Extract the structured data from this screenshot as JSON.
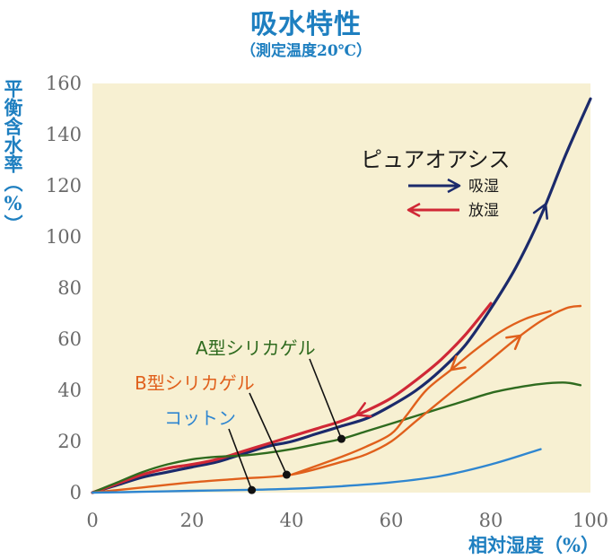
{
  "header": {
    "title": "吸水特性",
    "subtitle": "（測定温度20℃）"
  },
  "chart_data": {
    "type": "line",
    "title": "吸水特性",
    "subtitle": "（測定温度20℃）",
    "xlabel": "相対湿度（%）",
    "ylabel": "平衡含水率（%）",
    "xlim": [
      0,
      100
    ],
    "ylim": [
      0,
      160
    ],
    "xticks": [
      "0",
      "20",
      "40",
      "60",
      "80",
      "100"
    ],
    "yticks": [
      "0",
      "20",
      "40",
      "60",
      "80",
      "100",
      "120",
      "140",
      "160"
    ],
    "grid": false,
    "legend": {
      "title": "ピュアオアシス",
      "position": "top-right",
      "items": [
        {
          "label": "吸湿",
          "color": "#1b2a6b"
        },
        {
          "label": "放湿",
          "color": "#d02836"
        }
      ]
    },
    "series": [
      {
        "name": "ピュアオアシス 吸湿",
        "color": "#1b2a6b",
        "x": [
          0,
          5,
          10,
          15,
          20,
          25,
          30,
          35,
          40,
          45,
          50,
          55,
          60,
          65,
          70,
          75,
          80,
          85,
          90,
          95,
          100
        ],
        "y": [
          0,
          3,
          6,
          8,
          10,
          12,
          15,
          18,
          20,
          23,
          26,
          29,
          34,
          40,
          48,
          58,
          72,
          88,
          108,
          132,
          154
        ]
      },
      {
        "name": "ピュアオアシス 放湿",
        "color": "#d02836",
        "x": [
          0,
          5,
          10,
          15,
          20,
          25,
          30,
          35,
          40,
          45,
          50,
          55,
          60,
          65,
          70,
          75,
          80
        ],
        "y": [
          0,
          3.5,
          7,
          9.5,
          11,
          13,
          16,
          19,
          22,
          25,
          28,
          32,
          37,
          44,
          52,
          62,
          74
        ]
      },
      {
        "name": "A型シリカゲル",
        "color": "#2f6b1f",
        "x": [
          0,
          5,
          10,
          15,
          20,
          25,
          30,
          35,
          40,
          45,
          50,
          55,
          60,
          65,
          70,
          75,
          80,
          85,
          90,
          95,
          98
        ],
        "y": [
          0,
          4,
          8,
          11,
          13,
          14,
          14.5,
          15.5,
          17,
          19,
          21,
          24,
          27,
          30,
          33,
          36,
          39,
          41,
          42.5,
          43,
          42
        ]
      },
      {
        "name": "B型シリカゲル 吸湿",
        "color": "#e0601c",
        "x": [
          0,
          10,
          20,
          30,
          40,
          50,
          55,
          60,
          65,
          70,
          75,
          80,
          85,
          90,
          95,
          98
        ],
        "y": [
          0,
          2,
          4,
          5.5,
          7,
          12,
          15,
          20,
          28,
          36,
          44,
          52,
          60,
          67,
          72,
          73
        ]
      },
      {
        "name": "B型シリカゲル 放湿",
        "color": "#e0601c",
        "x": [
          40,
          50,
          55,
          60,
          63,
          67,
          72,
          77,
          82,
          87,
          92
        ],
        "y": [
          7,
          14,
          18,
          23,
          30,
          40,
          48,
          56,
          63,
          68,
          71
        ]
      },
      {
        "name": "コットン",
        "color": "#2f86d0",
        "x": [
          0,
          10,
          20,
          30,
          40,
          50,
          60,
          70,
          80,
          90
        ],
        "y": [
          0,
          0.3,
          0.7,
          1,
          1.5,
          2.5,
          4,
          6.5,
          11,
          17
        ]
      }
    ],
    "annotations": [
      {
        "text": "A型シリカゲル",
        "color": "#2f6b1f",
        "point": [
          50,
          21
        ]
      },
      {
        "text": "B型シリカゲル",
        "color": "#e0601c",
        "point": [
          39,
          7
        ]
      },
      {
        "text": "コットン",
        "color": "#2f86d0",
        "point": [
          32,
          1
        ]
      }
    ]
  }
}
